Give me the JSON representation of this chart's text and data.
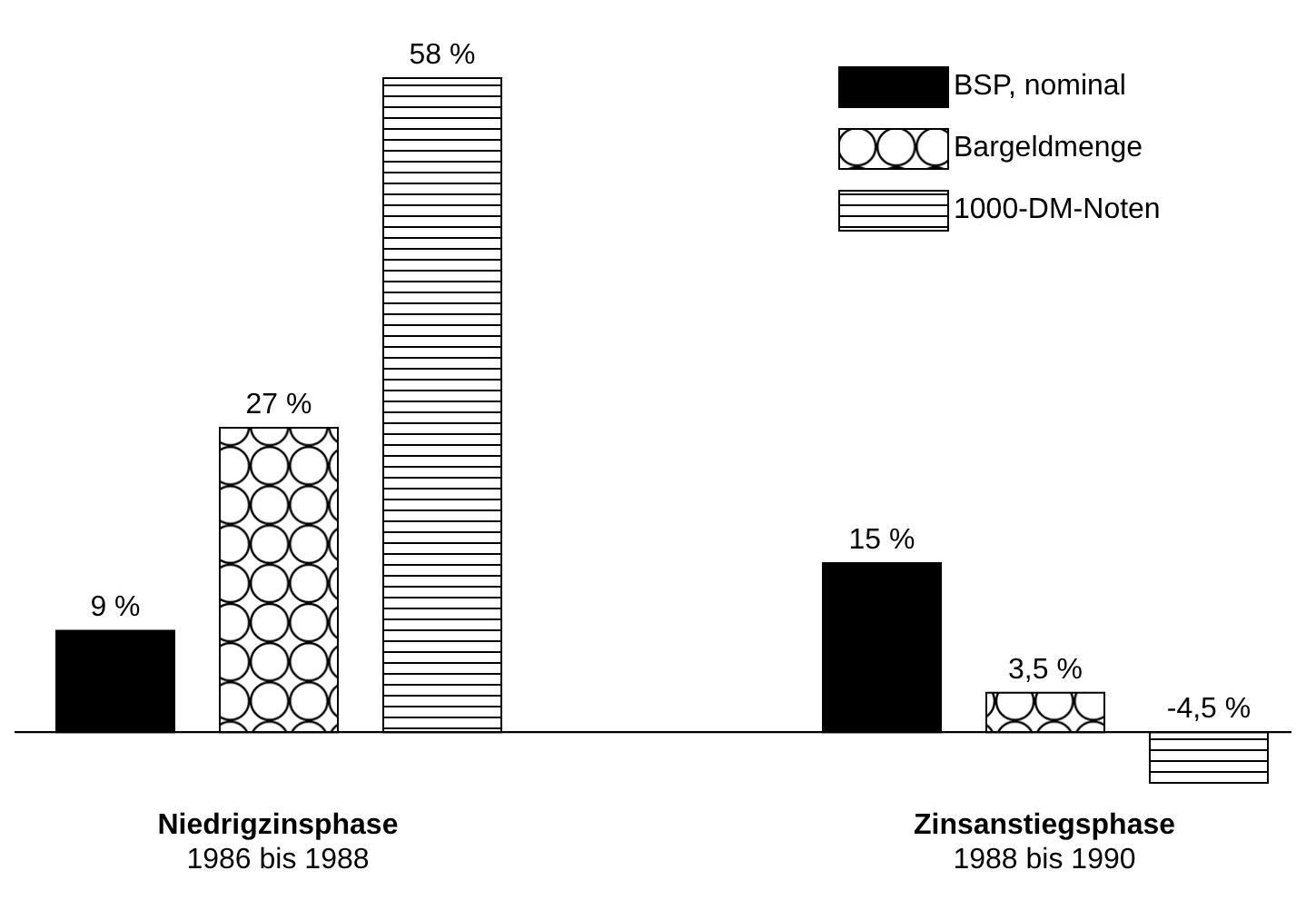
{
  "chart_data": {
    "type": "bar",
    "categories": [
      "Niedrigzinsphase\n1986 bis 1988",
      "Zinsanstiegsphase\n1988 bis 1990"
    ],
    "series": [
      {
        "name": "BSP, nominal",
        "color": "#000000",
        "values": [
          9,
          15
        ],
        "value_labels": [
          "9 %",
          "15 %"
        ]
      },
      {
        "name": "Bargeldmenge",
        "color": "#000000",
        "values": [
          27,
          3.5
        ],
        "value_labels": [
          "27 %",
          "3,5 %"
        ]
      },
      {
        "name": "1000-DM-Noten",
        "color": "#000000",
        "values": [
          58,
          -4.5
        ],
        "value_labels": [
          "58 %",
          "-4,5 %"
        ]
      }
    ],
    "legend": "top right",
    "grid": false
  }
}
